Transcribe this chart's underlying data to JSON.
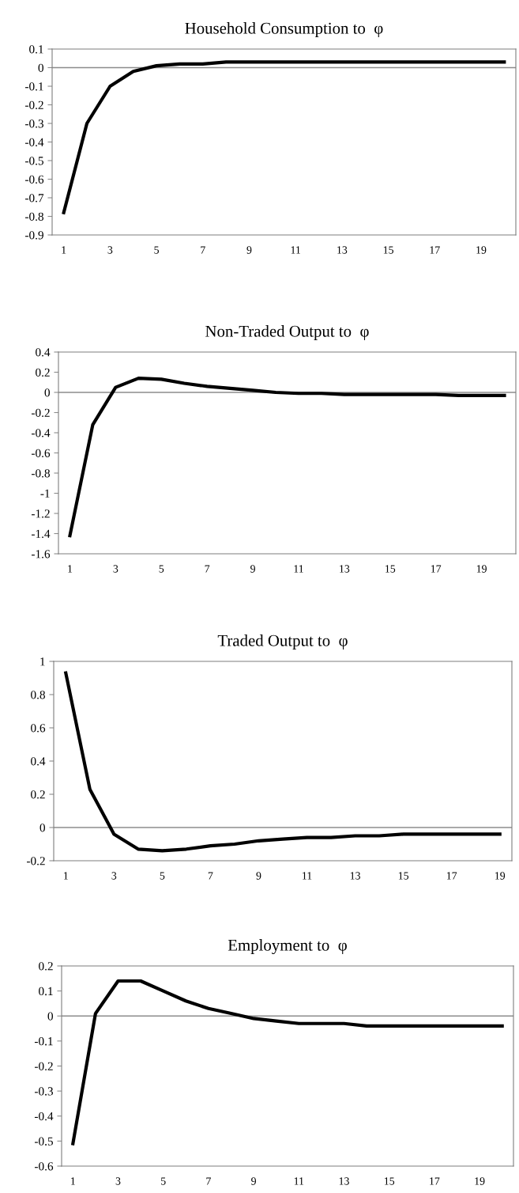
{
  "chart_data": [
    {
      "type": "line",
      "title": "Household Consumption to  φ",
      "categories": [
        "1",
        null,
        "3",
        null,
        "5",
        null,
        "7",
        null,
        "9",
        null,
        "11",
        null,
        "13",
        null,
        "15",
        null,
        "17",
        null,
        "19",
        null
      ],
      "series": [
        {
          "color": "#000000",
          "values": [
            -0.78,
            -0.3,
            -0.1,
            -0.02,
            0.01,
            0.02,
            0.02,
            0.03,
            0.03,
            0.03,
            0.03,
            0.03,
            0.03,
            0.03,
            0.03,
            0.03,
            0.03,
            0.03,
            0.03,
            0.03
          ]
        }
      ],
      "ylim": [
        -0.9,
        0.1
      ],
      "yticks": [
        -0.9,
        -0.8,
        -0.7,
        -0.6,
        -0.5,
        -0.4,
        -0.3,
        -0.2,
        -0.1,
        0,
        0.1
      ],
      "ref_lines": [
        {
          "axis": "y",
          "value": 0,
          "color": "#8c8c8c"
        }
      ],
      "grid": false,
      "legend": false,
      "marker": "none",
      "line_style": "solid"
    },
    {
      "type": "line",
      "title": "Non-Traded Output to  φ",
      "categories": [
        "1",
        null,
        "3",
        null,
        "5",
        null,
        "7",
        null,
        "9",
        null,
        "11",
        null,
        "13",
        null,
        "15",
        null,
        "17",
        null,
        "19",
        null
      ],
      "series": [
        {
          "color": "#000000",
          "values": [
            -1.42,
            -0.32,
            0.05,
            0.14,
            0.13,
            0.09,
            0.06,
            0.04,
            0.02,
            0,
            -0.01,
            -0.01,
            -0.02,
            -0.02,
            -0.02,
            -0.02,
            -0.02,
            -0.03,
            -0.03,
            -0.03
          ]
        }
      ],
      "ylim": [
        -1.6,
        0.4
      ],
      "yticks": [
        -1.6,
        -1.4,
        -1.2,
        -1,
        -0.8,
        -0.6,
        -0.4,
        -0.2,
        0,
        0.2,
        0.4
      ],
      "ref_lines": [
        {
          "axis": "y",
          "value": 0,
          "color": "#8c8c8c"
        }
      ],
      "grid": false,
      "legend": false,
      "marker": "none",
      "line_style": "solid"
    },
    {
      "type": "line",
      "title": "Traded Output to  φ",
      "categories": [
        "1",
        null,
        "3",
        null,
        "5",
        null,
        "7",
        null,
        "9",
        null,
        "11",
        null,
        "13",
        null,
        "15",
        null,
        "17",
        null,
        "19"
      ],
      "series": [
        {
          "color": "#000000",
          "values": [
            0.93,
            0.23,
            -0.04,
            -0.13,
            -0.14,
            -0.13,
            -0.11,
            -0.1,
            -0.08,
            -0.07,
            -0.06,
            -0.06,
            -0.05,
            -0.05,
            -0.04,
            -0.04,
            -0.04,
            -0.04,
            -0.04
          ]
        }
      ],
      "ylim": [
        -0.2,
        1
      ],
      "yticks": [
        -0.2,
        0,
        0.2,
        0.4,
        0.6,
        0.8,
        1
      ],
      "ref_lines": [
        {
          "axis": "y",
          "value": 0,
          "color": "#8c8c8c"
        }
      ],
      "grid": false,
      "legend": false,
      "marker": "none",
      "line_style": "solid"
    },
    {
      "type": "line",
      "title": "Employment to  φ",
      "categories": [
        "1",
        null,
        "3",
        null,
        "5",
        null,
        "7",
        null,
        "9",
        null,
        "11",
        null,
        "13",
        null,
        "15",
        null,
        "17",
        null,
        "19",
        null
      ],
      "series": [
        {
          "color": "#000000",
          "values": [
            -0.51,
            0.01,
            0.14,
            0.14,
            0.1,
            0.06,
            0.03,
            0.01,
            -0.01,
            -0.02,
            -0.03,
            -0.03,
            -0.03,
            -0.04,
            -0.04,
            -0.04,
            -0.04,
            -0.04,
            -0.04,
            -0.04
          ]
        }
      ],
      "ylim": [
        -0.6,
        0.2
      ],
      "yticks": [
        -0.6,
        -0.5,
        -0.4,
        -0.3,
        -0.2,
        -0.1,
        0,
        0.1,
        0.2
      ],
      "ref_lines": [
        {
          "axis": "y",
          "value": 0,
          "color": "#8c8c8c"
        }
      ],
      "grid": false,
      "legend": false,
      "marker": "none",
      "line_style": "solid"
    }
  ]
}
